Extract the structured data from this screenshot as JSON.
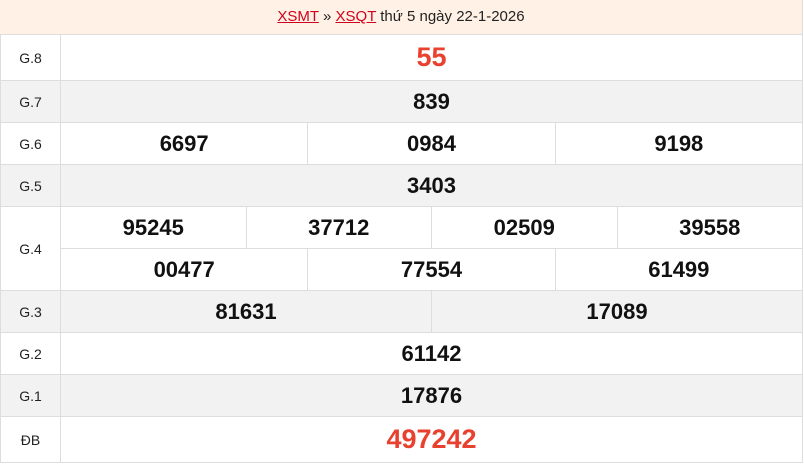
{
  "header": {
    "region_link": "XSMT",
    "separator": "»",
    "province_link": "XSQT",
    "date_text": "thứ 5 ngày 22-1-2026"
  },
  "colors": {
    "accent_red": "#e8412f",
    "link_red": "#d0021b",
    "header_bg": "#fff1e6"
  },
  "prizes": [
    {
      "label": "G.8",
      "lines": [
        [
          "55"
        ]
      ]
    },
    {
      "label": "G.7",
      "lines": [
        [
          "839"
        ]
      ]
    },
    {
      "label": "G.6",
      "lines": [
        [
          "6697",
          "0984",
          "9198"
        ]
      ]
    },
    {
      "label": "G.5",
      "lines": [
        [
          "3403"
        ]
      ]
    },
    {
      "label": "G.4",
      "lines": [
        [
          "95245",
          "37712",
          "02509",
          "39558"
        ],
        [
          "00477",
          "77554",
          "61499"
        ]
      ]
    },
    {
      "label": "G.3",
      "lines": [
        [
          "81631",
          "17089"
        ]
      ]
    },
    {
      "label": "G.2",
      "lines": [
        [
          "61142"
        ]
      ]
    },
    {
      "label": "G.1",
      "lines": [
        [
          "17876"
        ]
      ]
    },
    {
      "label": "ĐB",
      "lines": [
        [
          "497242"
        ]
      ]
    }
  ]
}
